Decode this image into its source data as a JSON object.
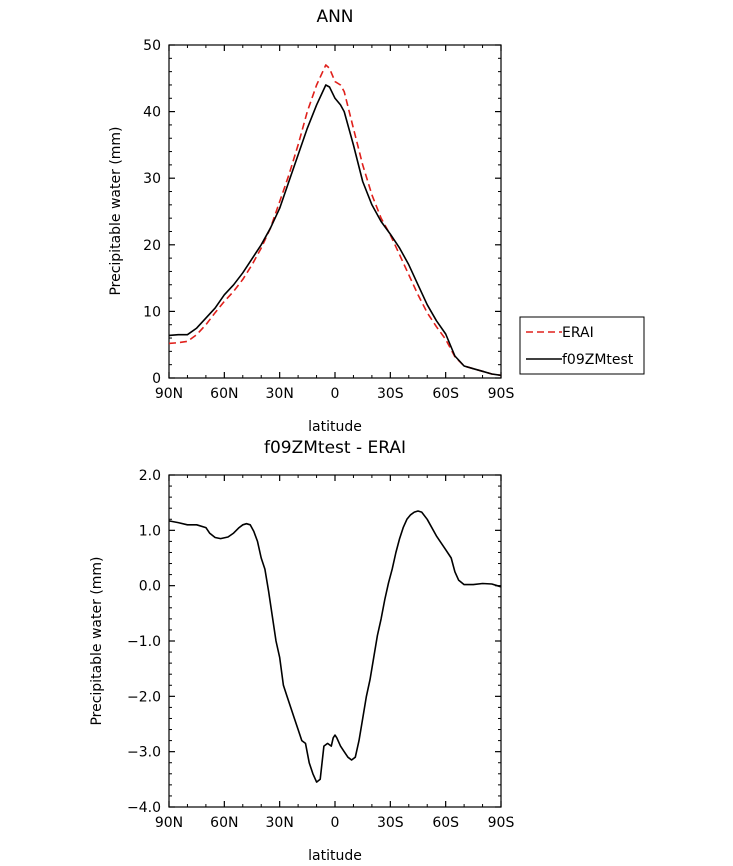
{
  "chart_data": [
    {
      "type": "line",
      "title": "ANN",
      "xlabel": "latitude",
      "ylabel": "Precipitable water (mm)",
      "xlim": [
        90,
        -90
      ],
      "ylim": [
        0,
        50
      ],
      "x_ticks": [
        90,
        60,
        30,
        0,
        -30,
        -60,
        -90
      ],
      "x_tick_labels": [
        "90N",
        "60N",
        "30N",
        "0",
        "30S",
        "60S",
        "90S"
      ],
      "y_ticks": [
        0,
        10,
        20,
        30,
        40,
        50
      ],
      "y_tick_labels": [
        "0",
        "10",
        "20",
        "30",
        "40",
        "50"
      ],
      "legend_position": "right",
      "series": [
        {
          "name": "ERAI",
          "color": "#e0201b",
          "dash": "dashed",
          "x": [
            90,
            85,
            80,
            75,
            70,
            65,
            60,
            55,
            50,
            45,
            40,
            35,
            30,
            25,
            20,
            15,
            10,
            5,
            3,
            0,
            -3,
            -5,
            -10,
            -15,
            -20,
            -25,
            -30,
            -35,
            -40,
            -45,
            -50,
            -55,
            -60,
            -65,
            -70,
            -75,
            -80,
            -85,
            -90
          ],
          "values": [
            5.2,
            5.3,
            5.5,
            6.5,
            8.0,
            9.8,
            11.5,
            13.0,
            14.8,
            17.0,
            19.5,
            22.5,
            26.5,
            30.5,
            35.0,
            40.0,
            44.0,
            47.0,
            46.5,
            44.5,
            44.0,
            43.0,
            37.5,
            32.0,
            27.5,
            24.0,
            21.5,
            18.5,
            15.5,
            12.5,
            9.8,
            7.7,
            5.8,
            3.2,
            1.8,
            1.4,
            1.0,
            0.6,
            0.4
          ]
        },
        {
          "name": "f09ZMtest",
          "color": "#000000",
          "dash": "solid",
          "x": [
            90,
            85,
            80,
            75,
            70,
            65,
            60,
            55,
            50,
            45,
            40,
            35,
            30,
            25,
            20,
            15,
            10,
            5,
            3,
            0,
            -3,
            -5,
            -10,
            -15,
            -20,
            -25,
            -30,
            -35,
            -40,
            -45,
            -50,
            -55,
            -60,
            -65,
            -70,
            -75,
            -80,
            -85,
            -90
          ],
          "values": [
            6.4,
            6.5,
            6.5,
            7.5,
            9.0,
            10.5,
            12.5,
            14.0,
            15.8,
            17.9,
            20.0,
            22.5,
            25.5,
            29.5,
            33.5,
            37.5,
            41.0,
            44.0,
            43.7,
            42.0,
            41.0,
            40.0,
            35.0,
            29.5,
            26.0,
            23.5,
            21.6,
            19.5,
            17.0,
            14.0,
            11.0,
            8.6,
            6.6,
            3.3,
            1.8,
            1.4,
            1.0,
            0.6,
            0.4
          ]
        }
      ]
    },
    {
      "type": "line",
      "title": "f09ZMtest - ERAI",
      "xlabel": "latitude",
      "ylabel": "Precipitable water (mm)",
      "xlim": [
        90,
        -90
      ],
      "ylim": [
        -4.0,
        2.0
      ],
      "x_ticks": [
        90,
        60,
        30,
        0,
        -30,
        -60,
        -90
      ],
      "x_tick_labels": [
        "90N",
        "60N",
        "30N",
        "0",
        "30S",
        "60S",
        "90S"
      ],
      "y_ticks": [
        -4.0,
        -3.0,
        -2.0,
        -1.0,
        0.0,
        1.0,
        2.0
      ],
      "y_tick_labels": [
        "−4.0",
        "−3.0",
        "−2.0",
        "−1.0",
        "0.0",
        "1.0",
        "2.0"
      ],
      "series": [
        {
          "name": "f09ZMtest - ERAI",
          "color": "#000000",
          "dash": "solid",
          "x": [
            90,
            85,
            80,
            75,
            70,
            68,
            65,
            62,
            58,
            55,
            52,
            50,
            48,
            46,
            44,
            42,
            40,
            38,
            36,
            34,
            32,
            30,
            28,
            26,
            24,
            22,
            20,
            18,
            16,
            14,
            12,
            10,
            8,
            6,
            4,
            2,
            1,
            0,
            -1,
            -3,
            -5,
            -7,
            -9,
            -11,
            -13,
            -15,
            -17,
            -19,
            -21,
            -23,
            -25,
            -27,
            -29,
            -31,
            -33,
            -35,
            -37,
            -39,
            -41,
            -43,
            -45,
            -47,
            -50,
            -55,
            -60,
            -63,
            -65,
            -67,
            -70,
            -75,
            -80,
            -85,
            -88,
            -90
          ],
          "values": [
            1.17,
            1.14,
            1.1,
            1.1,
            1.05,
            0.95,
            0.87,
            0.85,
            0.88,
            0.95,
            1.05,
            1.1,
            1.12,
            1.1,
            0.98,
            0.8,
            0.5,
            0.3,
            -0.1,
            -0.55,
            -1.0,
            -1.3,
            -1.8,
            -2.0,
            -2.2,
            -2.4,
            -2.6,
            -2.8,
            -2.85,
            -3.2,
            -3.4,
            -3.55,
            -3.5,
            -2.9,
            -2.85,
            -2.9,
            -2.75,
            -2.7,
            -2.75,
            -2.9,
            -3.0,
            -3.1,
            -3.15,
            -3.1,
            -2.8,
            -2.4,
            -2.0,
            -1.7,
            -1.3,
            -0.9,
            -0.6,
            -0.25,
            0.05,
            0.3,
            0.6,
            0.85,
            1.05,
            1.2,
            1.28,
            1.33,
            1.35,
            1.33,
            1.2,
            0.9,
            0.65,
            0.5,
            0.25,
            0.1,
            0.02,
            0.02,
            0.04,
            0.03,
            0.0,
            -0.02
          ]
        }
      ]
    }
  ]
}
